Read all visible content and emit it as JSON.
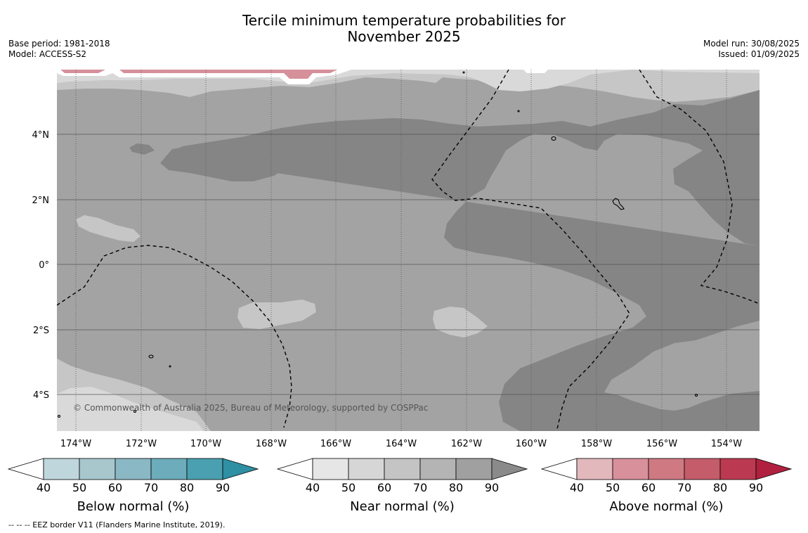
{
  "title": {
    "line1": "Tercile minimum temperature probabilities for",
    "line2": "November 2025"
  },
  "meta_left": {
    "base_period": "Base period: 1981-2018",
    "model": "Model: ACCESS-S2"
  },
  "meta_right": {
    "model_run": "Model run: 30/08/2025",
    "issued": "Issued: 01/09/2025"
  },
  "map": {
    "lon_ticks": [
      "174°W",
      "172°W",
      "170°W",
      "168°W",
      "166°W",
      "164°W",
      "162°W",
      "160°W",
      "158°W",
      "156°W",
      "154°W"
    ],
    "lat_ticks": [
      "4°N",
      "2°N",
      "0°",
      "2°S",
      "4°S"
    ],
    "copyright": "© Commonwealth of Australia 2025, Bureau of Meteorology, supported by COSPPac",
    "colors": {
      "near_60": "#d9d9d9",
      "near_70": "#c6c6c6",
      "near_80": "#a3a3a3",
      "near_90": "#858585",
      "above_50": "#d5909a"
    }
  },
  "colorbars": [
    {
      "id": "below",
      "title": "Below normal (%)",
      "ticks": [
        "40",
        "50",
        "60",
        "70",
        "80",
        "90"
      ],
      "colors": [
        "#bed6dc",
        "#a7c7cd",
        "#8ab8c4",
        "#6cacbb",
        "#4aa0b0",
        "#2f8fa3"
      ]
    },
    {
      "id": "near",
      "title": "Near normal (%)",
      "ticks": [
        "40",
        "50",
        "60",
        "70",
        "80",
        "90"
      ],
      "colors": [
        "#e6e6e6",
        "#d6d6d6",
        "#c4c4c4",
        "#b4b4b4",
        "#a0a0a0",
        "#8a8a8a"
      ]
    },
    {
      "id": "above",
      "title": "Above normal (%)",
      "ticks": [
        "40",
        "50",
        "60",
        "70",
        "80",
        "90"
      ],
      "colors": [
        "#e3b8bd",
        "#d8909b",
        "#cf7982",
        "#c55c6a",
        "#bb3a51",
        "#b0203f"
      ]
    }
  ],
  "footnote": "--  --  -- EEZ border V11 (Flanders Marine Institute, 2019)."
}
